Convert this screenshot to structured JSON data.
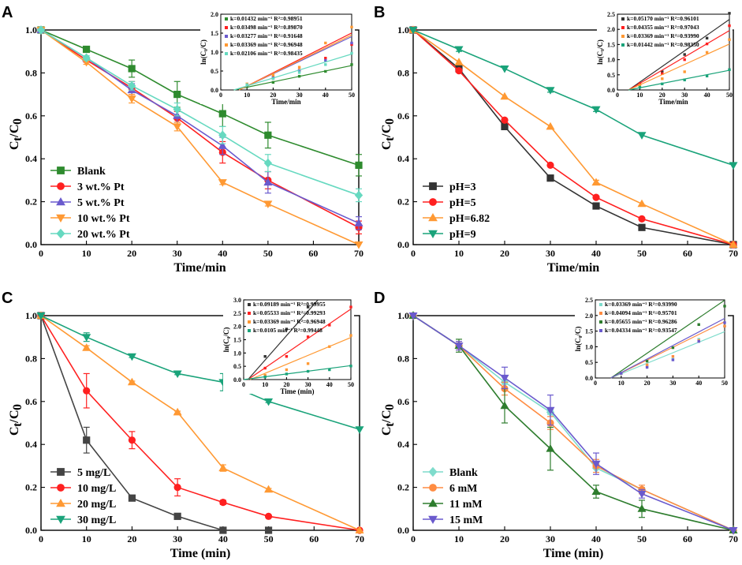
{
  "chart_data": [
    {
      "type": "line",
      "panel_label": "A",
      "xlabel": "Time/min",
      "ylabel_main": "C",
      "ylabel_num_sub": "t",
      "ylabel_den": "C",
      "ylabel_den_sub": "0",
      "xlim": [
        0,
        70
      ],
      "ylim": [
        0,
        1.0
      ],
      "xticks": [
        "0",
        "10",
        "20",
        "30",
        "40",
        "50",
        "60",
        "70"
      ],
      "yticks": [
        "0.0",
        "0.2",
        "0.4",
        "0.6",
        "0.8",
        "1.0"
      ],
      "legend_position": "bottom-left",
      "x": [
        0,
        10,
        20,
        30,
        40,
        50,
        70
      ],
      "series": [
        {
          "name": "Blank",
          "color": "#2e8b2e",
          "marker": "square",
          "values": [
            1.0,
            0.91,
            0.82,
            0.7,
            0.61,
            0.51,
            0.37
          ],
          "errors": [
            0,
            0.01,
            0.04,
            0.06,
            0.06,
            0.06,
            0.05
          ]
        },
        {
          "name": "3 wt.% Pt",
          "color": "#ff2020",
          "marker": "circle",
          "values": [
            1.0,
            0.86,
            0.73,
            0.59,
            0.43,
            0.3,
            0.08
          ],
          "errors": [
            0,
            0.01,
            0.03,
            0.03,
            0.05,
            0.04,
            0.03
          ]
        },
        {
          "name": "5 wt.% Pt",
          "color": "#6a5acd",
          "marker": "triangle-up",
          "values": [
            1.0,
            0.87,
            0.72,
            0.6,
            0.46,
            0.29,
            0.1
          ],
          "errors": [
            0,
            0.01,
            0.03,
            0.03,
            0.04,
            0.05,
            0.03
          ]
        },
        {
          "name": "10 wt.% Pt",
          "color": "#ff9933",
          "marker": "triangle-down",
          "values": [
            1.0,
            0.85,
            0.68,
            0.55,
            0.29,
            0.19,
            0.0
          ],
          "errors": [
            0,
            0.01,
            0.02,
            0.02,
            0.01,
            0.01,
            0
          ]
        },
        {
          "name": "20 wt.% Pt",
          "color": "#66d9c0",
          "marker": "diamond",
          "values": [
            1.0,
            0.87,
            0.74,
            0.63,
            0.51,
            0.38,
            0.23
          ],
          "errors": [
            0,
            0.01,
            0.02,
            0.03,
            0.04,
            0.04,
            0.03
          ]
        }
      ],
      "inset": {
        "ylabel": "ln(C₀/C)",
        "xlabel": "Time/min",
        "xlim": [
          0,
          50
        ],
        "ylim": [
          0,
          2.0
        ],
        "xticks": [
          "0",
          "10",
          "20",
          "30",
          "40",
          "50"
        ],
        "yticks": [
          "0.0",
          "0.5",
          "1.0",
          "1.5",
          "2.0"
        ],
        "x": [
          10,
          20,
          30,
          40,
          50
        ],
        "series": [
          {
            "label": "k=0.01432 min⁻¹  R²=0.98951",
            "color": "#2e8b2e",
            "slope": 0.01432,
            "x0": 5,
            "values": [
              0.09,
              0.2,
              0.36,
              0.49,
              0.67
            ]
          },
          {
            "label": "k=0.03498 min⁻¹  R²=0.89870",
            "color": "#ff2020",
            "slope": 0.03498,
            "x0": 7,
            "values": [
              0.15,
              0.31,
              0.52,
              0.84,
              1.2
            ]
          },
          {
            "label": "k=0.03277 min⁻¹  R²=0.91648",
            "color": "#6a5acd",
            "slope": 0.03277,
            "x0": 7,
            "values": [
              0.14,
              0.33,
              0.51,
              0.78,
              1.24
            ]
          },
          {
            "label": "k=0.03369 min⁻¹  R²=0.96948",
            "color": "#ff9933",
            "slope": 0.03369,
            "x0": 7,
            "values": [
              0.16,
              0.39,
              0.6,
              1.24,
              1.66
            ]
          },
          {
            "label": "k=0.02106 min⁻¹  R²=0.98435",
            "color": "#66d9c0",
            "slope": 0.02106,
            "x0": 5,
            "values": [
              0.14,
              0.3,
              0.46,
              0.67,
              0.97
            ]
          }
        ]
      }
    },
    {
      "type": "line",
      "panel_label": "B",
      "xlabel": "Time/min",
      "ylabel_main": "C",
      "ylabel_num_sub": "t",
      "ylabel_den": "C",
      "ylabel_den_sub": "0",
      "xlim": [
        0,
        70
      ],
      "ylim": [
        0,
        1.0
      ],
      "xticks": [
        "0",
        "10",
        "20",
        "30",
        "40",
        "50",
        "60",
        "70"
      ],
      "yticks": [
        "0.0",
        "0.2",
        "0.4",
        "0.6",
        "0.8",
        "1.0"
      ],
      "legend_position": "bottom-left",
      "x": [
        0,
        10,
        20,
        30,
        40,
        50,
        70
      ],
      "series": [
        {
          "name": "pH=3",
          "color": "#333333",
          "marker": "square",
          "values": [
            1.0,
            0.82,
            0.55,
            0.31,
            0.18,
            0.08,
            0.0
          ],
          "errors": [
            0,
            0,
            0,
            0,
            0,
            0,
            0
          ]
        },
        {
          "name": "pH=5",
          "color": "#ff2020",
          "marker": "circle",
          "values": [
            1.0,
            0.81,
            0.58,
            0.37,
            0.22,
            0.12,
            0.0
          ],
          "errors": [
            0,
            0,
            0,
            0,
            0,
            0,
            0
          ]
        },
        {
          "name": "pH=6.82",
          "color": "#ff9933",
          "marker": "triangle-up",
          "values": [
            1.0,
            0.85,
            0.69,
            0.55,
            0.29,
            0.19,
            0.0
          ],
          "errors": [
            0,
            0,
            0,
            0,
            0.01,
            0,
            0
          ]
        },
        {
          "name": "pH=9",
          "color": "#1aa37a",
          "marker": "triangle-down",
          "values": [
            1.0,
            0.91,
            0.82,
            0.72,
            0.63,
            0.51,
            0.37
          ],
          "errors": [
            0,
            0.01,
            0,
            0.01,
            0.01,
            0,
            0
          ]
        }
      ],
      "inset": {
        "ylabel": "ln(C₀/C)",
        "xlabel": "Time/min",
        "xlim": [
          0,
          50
        ],
        "ylim": [
          0,
          2.5
        ],
        "xticks": [
          "0",
          "10",
          "20",
          "30",
          "40",
          "50"
        ],
        "yticks": [
          "0.0",
          "0.5",
          "1.0",
          "1.5",
          "2.0",
          "2.5"
        ],
        "x": [
          10,
          20,
          30,
          40,
          50
        ],
        "series": [
          {
            "label": "k=0.05170 min⁻¹  R²=0.96101",
            "color": "#333333",
            "slope": 0.0517,
            "x0": 5,
            "values": [
              0.2,
              0.6,
              1.17,
              1.71,
              2.53
            ]
          },
          {
            "label": "k=0.04355 min⁻¹  R²=0.97043",
            "color": "#ff2020",
            "slope": 0.04355,
            "x0": 5,
            "values": [
              0.21,
              0.54,
              1.0,
              1.52,
              2.12
            ]
          },
          {
            "label": "k=0.03369 min⁻¹  R²=0.93990",
            "color": "#ff9933",
            "slope": 0.03369,
            "x0": 5,
            "values": [
              0.16,
              0.37,
              0.6,
              1.24,
              1.66
            ]
          },
          {
            "label": "k=0.01442 min⁻¹  R²=0.98350",
            "color": "#1aa37a",
            "slope": 0.01442,
            "x0": 5,
            "values": [
              0.09,
              0.2,
              0.33,
              0.46,
              0.67
            ]
          }
        ]
      }
    },
    {
      "type": "line",
      "panel_label": "C",
      "xlabel": "Time (min)",
      "ylabel_main": "C",
      "ylabel_num_sub": "t",
      "ylabel_den": "C",
      "ylabel_den_sub": "0",
      "xlim": [
        0,
        70
      ],
      "ylim": [
        0,
        1.0
      ],
      "xticks": [
        "0",
        "10",
        "20",
        "30",
        "40",
        "50",
        "60",
        "70"
      ],
      "yticks": [
        "0.0",
        "0.2",
        "0.4",
        "0.6",
        "0.8",
        "1.0"
      ],
      "legend_position": "bottom-left",
      "x": [
        0,
        10,
        20,
        30,
        40,
        50,
        70
      ],
      "series": [
        {
          "name": "5 mg/L",
          "color": "#444444",
          "marker": "square",
          "values": [
            1.0,
            0.42,
            0.15,
            0.065,
            0.0,
            0.0,
            null
          ],
          "errors": [
            0,
            0.06,
            0.01,
            0.005,
            0,
            0,
            0
          ]
        },
        {
          "name": "10 mg/L",
          "color": "#ff2020",
          "marker": "circle",
          "values": [
            1.0,
            0.65,
            0.42,
            0.2,
            0.13,
            0.065,
            0.0
          ],
          "errors": [
            0,
            0.08,
            0.04,
            0.04,
            0.01,
            0.005,
            0
          ]
        },
        {
          "name": "20 mg/L",
          "color": "#ff9933",
          "marker": "triangle-up",
          "values": [
            1.0,
            0.85,
            0.69,
            0.55,
            0.29,
            0.19,
            0.0
          ],
          "errors": [
            0,
            0.01,
            0.005,
            0.005,
            0.015,
            0.005,
            0
          ]
        },
        {
          "name": "30 mg/L",
          "color": "#1aa37a",
          "marker": "triangle-down",
          "values": [
            1.0,
            0.9,
            0.81,
            0.73,
            0.69,
            0.6,
            0.47
          ],
          "errors": [
            0,
            0.02,
            0.005,
            0.005,
            0.04,
            0.005,
            0
          ]
        }
      ],
      "inset": {
        "ylabel": "ln(C₀/C)",
        "xlabel": "Time (min)",
        "xlim": [
          0,
          50
        ],
        "ylim": [
          0,
          3.0
        ],
        "xticks": [
          "0",
          "10",
          "20",
          "30",
          "40",
          "50"
        ],
        "yticks": [
          "0.0",
          "0.5",
          "1.0",
          "1.5",
          "2.0",
          "2.5",
          "3.0"
        ],
        "x": [
          10,
          20,
          30,
          40,
          50
        ],
        "series": [
          {
            "label": "k=0.09189 min⁻¹   R²=0.99955",
            "color": "#333333",
            "slope": 0.09189,
            "x0": 2,
            "values": [
              0.87,
              1.9,
              2.73,
              null,
              null
            ]
          },
          {
            "label": "k=0.05533 min⁻¹   R²=0.99293",
            "color": "#ff2020",
            "slope": 0.05533,
            "x0": 2,
            "values": [
              0.43,
              0.87,
              1.61,
              2.05,
              2.73
            ]
          },
          {
            "label": "k=0.03369 min⁻¹   R²=0.96948",
            "color": "#ff9933",
            "slope": 0.03369,
            "x0": 3,
            "values": [
              0.16,
              0.37,
              0.6,
              1.24,
              1.66
            ]
          },
          {
            "label": "k=0.0105 min⁻¹   R²=0.99448",
            "color": "#1aa37a",
            "slope": 0.0105,
            "x0": 0,
            "values": [
              0.1,
              0.21,
              0.31,
              0.37,
              0.51
            ]
          }
        ]
      }
    },
    {
      "type": "line",
      "panel_label": "D",
      "xlabel": "Time (min)",
      "ylabel_main": "C",
      "ylabel_num_sub": "t",
      "ylabel_den": "C",
      "ylabel_den_sub": "0",
      "xlim": [
        0,
        70
      ],
      "ylim": [
        0,
        1.0
      ],
      "xticks": [
        "0",
        "10",
        "20",
        "30",
        "40",
        "50",
        "60",
        "70"
      ],
      "yticks": [
        "0.0",
        "0.2",
        "0.4",
        "0.6",
        "0.8",
        "1.0"
      ],
      "legend_position": "bottom-left",
      "x": [
        0,
        10,
        20,
        30,
        40,
        50,
        70
      ],
      "series": [
        {
          "name": "Blank",
          "color": "#7fdccc",
          "marker": "diamond",
          "values": [
            1.0,
            0.86,
            0.69,
            0.55,
            0.29,
            0.19,
            0.0
          ],
          "errors": [
            0,
            0.01,
            0.01,
            0.01,
            0.02,
            0.01,
            0
          ]
        },
        {
          "name": "6 mM",
          "color": "#ff8c42",
          "marker": "circle",
          "values": [
            1.0,
            0.86,
            0.66,
            0.5,
            0.3,
            0.19,
            0.0
          ],
          "errors": [
            0,
            0.02,
            0.03,
            0.03,
            0.03,
            0.02,
            0
          ]
        },
        {
          "name": "11 mM",
          "color": "#2e7d2e",
          "marker": "triangle-up",
          "values": [
            1.0,
            0.86,
            0.58,
            0.38,
            0.18,
            0.1,
            0.0
          ],
          "errors": [
            0,
            0.03,
            0.08,
            0.1,
            0.03,
            0.04,
            0
          ]
        },
        {
          "name": "15 mM",
          "color": "#6a5acd",
          "marker": "triangle-down",
          "values": [
            1.0,
            0.86,
            0.71,
            0.56,
            0.31,
            0.17,
            0.0
          ],
          "errors": [
            0,
            0.02,
            0.05,
            0.07,
            0.05,
            0.02,
            0
          ]
        }
      ],
      "inset": {
        "ylabel": "ln(C₀/C)",
        "xlabel": "",
        "xlim": [
          0,
          50
        ],
        "ylim": [
          0,
          2.5
        ],
        "xticks": [
          "0",
          "10",
          "20",
          "30",
          "40",
          "50"
        ],
        "yticks": [
          "0.0",
          "0.5",
          "1.0",
          "1.5",
          "2.0",
          "2.5"
        ],
        "x": [
          10,
          20,
          30,
          40,
          50
        ],
        "series": [
          {
            "label": "k=0.03369 min⁻¹  R²=0.93990",
            "color": "#7fdccc",
            "slope": 0.03369,
            "x0": 6,
            "values": [
              0.15,
              0.37,
              0.6,
              1.24,
              1.66
            ]
          },
          {
            "label": "k=0.04094 min⁻¹  R²=0.95701",
            "color": "#ff8c42",
            "slope": 0.04094,
            "x0": 6,
            "values": [
              0.15,
              0.42,
              0.69,
              1.2,
              1.66
            ]
          },
          {
            "label": "k=0.05655 min⁻¹  R²=0.96286",
            "color": "#2e7d2e",
            "slope": 0.05655,
            "x0": 6,
            "values": [
              0.15,
              0.54,
              0.97,
              1.71,
              2.3
            ]
          },
          {
            "label": "k=0.04334 min⁻¹  R²=0.93547",
            "color": "#6a5acd",
            "slope": 0.04334,
            "x0": 6,
            "values": [
              0.15,
              0.34,
              0.58,
              1.17,
              1.77
            ]
          }
        ]
      }
    }
  ]
}
